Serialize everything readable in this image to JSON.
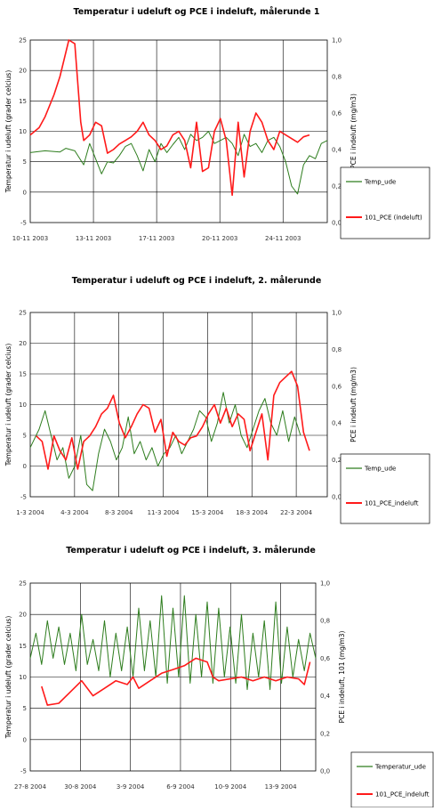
{
  "chart_data": [
    {
      "type": "line",
      "title": "Temperatur i udeluft og PCE i indeluft, målerunde 1",
      "ylabel": "Temperatur i udeluft  (grader celcius)",
      "y2label": "PCE i indeluft (mg/m3)",
      "xlabel": "",
      "x_tick_labels": [
        "10-11 2003",
        "13-11 2003",
        "17-11 2003",
        "20-11 2003",
        "24-11 2003"
      ],
      "y_ticks": [
        "-5",
        "0",
        "5",
        "10",
        "15",
        "20",
        "25"
      ],
      "y2_ticks": [
        "0,0",
        "0,2",
        "0,4",
        "0,6",
        "0,8",
        "1,0"
      ],
      "ylim": [
        -5,
        25
      ],
      "y2lim": [
        0,
        1
      ],
      "grid": true,
      "legend_position": "right",
      "series": [
        {
          "name": "Temp_ude",
          "color": "#2e7d1e",
          "axis": "left",
          "t": [
            0,
            0.05,
            0.1,
            0.12,
            0.15,
            0.18,
            0.2,
            0.22,
            0.24,
            0.26,
            0.28,
            0.3,
            0.32,
            0.34,
            0.36,
            0.38,
            0.4,
            0.42,
            0.44,
            0.46,
            0.48,
            0.5,
            0.52,
            0.54,
            0.56,
            0.58,
            0.6,
            0.62,
            0.64,
            0.66,
            0.68,
            0.7,
            0.72,
            0.74,
            0.76,
            0.78,
            0.8,
            0.82,
            0.84,
            0.86,
            0.88,
            0.9,
            0.92,
            0.94,
            0.96,
            0.98,
            1.0
          ],
          "values": [
            6.5,
            6.8,
            6.6,
            7.2,
            6.8,
            4.5,
            8.0,
            5.5,
            3.0,
            5.0,
            4.8,
            6.0,
            7.5,
            8.0,
            6.0,
            3.5,
            7.0,
            5.0,
            8.0,
            6.5,
            7.8,
            9.0,
            7.0,
            9.5,
            8.5,
            9.0,
            10.0,
            8.0,
            8.5,
            9.0,
            8.0,
            6.0,
            9.5,
            7.5,
            8.0,
            6.5,
            8.5,
            9.0,
            7.5,
            5.0,
            1.0,
            -0.3,
            4.5,
            6.0,
            5.5,
            8.0,
            8.5
          ]
        },
        {
          "name": "101_PCE (indeluft)",
          "color": "#ff1a1a",
          "axis": "right",
          "t": [
            0,
            0.03,
            0.05,
            0.08,
            0.1,
            0.13,
            0.15,
            0.17,
            0.18,
            0.2,
            0.22,
            0.24,
            0.26,
            0.28,
            0.3,
            0.32,
            0.34,
            0.36,
            0.38,
            0.4,
            0.42,
            0.44,
            0.46,
            0.48,
            0.5,
            0.52,
            0.54,
            0.56,
            0.58,
            0.6,
            0.62,
            0.64,
            0.66,
            0.68,
            0.7,
            0.72,
            0.74,
            0.76,
            0.78,
            0.8,
            0.82,
            0.84,
            0.86,
            0.88,
            0.9,
            0.92,
            0.94
          ],
          "values": [
            0.48,
            0.52,
            0.58,
            0.7,
            0.8,
            1.0,
            0.98,
            0.55,
            0.45,
            0.48,
            0.55,
            0.53,
            0.38,
            0.4,
            0.43,
            0.45,
            0.47,
            0.5,
            0.55,
            0.48,
            0.45,
            0.4,
            0.42,
            0.48,
            0.5,
            0.45,
            0.3,
            0.55,
            0.28,
            0.3,
            0.5,
            0.57,
            0.45,
            0.15,
            0.55,
            0.25,
            0.5,
            0.6,
            0.55,
            0.45,
            0.4,
            0.5,
            0.48,
            0.46,
            0.44,
            0.47,
            0.48
          ]
        }
      ]
    },
    {
      "type": "line",
      "title": "Temperatur i udeluft  og PCE i indeluft, 2. målerunde",
      "ylabel": "Temperatur i udeluft (grader celcius)",
      "y2label": "PCE i indeluft  (mg/m3)",
      "xlabel": "",
      "x_tick_labels": [
        "1-3 2004",
        "4-3 2004",
        "8-3 2004",
        "11-3 2004",
        "15-3 2004",
        "18-3 2004",
        "22-3 2004"
      ],
      "y_ticks": [
        "-5",
        "0",
        "5",
        "10",
        "15",
        "20",
        "25"
      ],
      "y2_ticks": [
        "0,0",
        "0,2",
        "0,4",
        "0,6",
        "0,8",
        "1,0"
      ],
      "ylim": [
        -5,
        25
      ],
      "y2lim": [
        0,
        1
      ],
      "grid": true,
      "legend_position": "right",
      "series": [
        {
          "name": "Temp_ude",
          "color": "#2e7d1e",
          "axis": "left",
          "t": [
            0,
            0.03,
            0.05,
            0.07,
            0.09,
            0.11,
            0.13,
            0.15,
            0.17,
            0.19,
            0.21,
            0.23,
            0.25,
            0.27,
            0.29,
            0.31,
            0.33,
            0.35,
            0.37,
            0.39,
            0.41,
            0.43,
            0.45,
            0.47,
            0.49,
            0.51,
            0.53,
            0.55,
            0.57,
            0.59,
            0.61,
            0.63,
            0.65,
            0.67,
            0.69,
            0.71,
            0.73,
            0.75,
            0.77,
            0.79,
            0.81,
            0.83,
            0.85,
            0.87,
            0.89,
            0.91
          ],
          "values": [
            3,
            6,
            9,
            5,
            1,
            3,
            -2,
            0,
            5,
            -3,
            -4,
            2,
            6,
            4,
            1,
            3,
            8,
            2,
            4,
            1,
            3,
            0,
            2,
            3,
            5,
            2,
            4,
            6,
            9,
            8,
            4,
            7,
            12,
            7,
            10,
            5,
            3,
            6,
            9,
            11,
            7,
            5,
            9,
            4,
            8,
            5
          ]
        },
        {
          "name": "101_PCE_indeluft",
          "color": "#ff1a1a",
          "axis": "right",
          "t": [
            0.02,
            0.04,
            0.06,
            0.08,
            0.1,
            0.12,
            0.14,
            0.16,
            0.18,
            0.2,
            0.22,
            0.24,
            0.26,
            0.28,
            0.3,
            0.32,
            0.34,
            0.36,
            0.38,
            0.4,
            0.42,
            0.44,
            0.46,
            0.48,
            0.5,
            0.52,
            0.54,
            0.56,
            0.58,
            0.6,
            0.62,
            0.64,
            0.66,
            0.68,
            0.7,
            0.72,
            0.74,
            0.76,
            0.78,
            0.8,
            0.82,
            0.84,
            0.86,
            0.88,
            0.9,
            0.92,
            0.94
          ],
          "values": [
            0.33,
            0.3,
            0.15,
            0.33,
            0.25,
            0.2,
            0.32,
            0.15,
            0.3,
            0.33,
            0.38,
            0.45,
            0.48,
            0.55,
            0.4,
            0.32,
            0.38,
            0.45,
            0.5,
            0.48,
            0.35,
            0.42,
            0.22,
            0.35,
            0.3,
            0.28,
            0.32,
            0.33,
            0.38,
            0.45,
            0.5,
            0.4,
            0.48,
            0.38,
            0.45,
            0.42,
            0.25,
            0.35,
            0.45,
            0.2,
            0.55,
            0.62,
            0.65,
            0.68,
            0.6,
            0.35,
            0.25
          ]
        }
      ]
    },
    {
      "type": "line",
      "title": "Temperatur i udeluft og PCE i indeluft, 3. målerunde",
      "ylabel": "Temperatur i udeluft (grader celcius)",
      "y2label": "PCE i indeluft, 101 (mg/m3)",
      "xlabel": "",
      "x_tick_labels": [
        "27-8 2004",
        "30-8 2004",
        "3-9 2004",
        "6-9 2004",
        "10-9 2004",
        "13-9 2004"
      ],
      "y_ticks": [
        "-5",
        "0",
        "5",
        "10",
        "15",
        "20",
        "25"
      ],
      "y2_ticks": [
        "0,0",
        "0,2",
        "0,4",
        "0,6",
        "0,8",
        "1,0"
      ],
      "ylim": [
        -5,
        25
      ],
      "y2lim": [
        0,
        1
      ],
      "grid": true,
      "legend_position": "right",
      "series": [
        {
          "name": "Temperatur_ude",
          "color": "#2e7d1e",
          "axis": "left",
          "t": [
            0,
            0.02,
            0.04,
            0.06,
            0.08,
            0.1,
            0.12,
            0.14,
            0.16,
            0.18,
            0.2,
            0.22,
            0.24,
            0.26,
            0.28,
            0.3,
            0.32,
            0.34,
            0.36,
            0.38,
            0.4,
            0.42,
            0.44,
            0.46,
            0.48,
            0.5,
            0.52,
            0.54,
            0.56,
            0.58,
            0.6,
            0.62,
            0.64,
            0.66,
            0.68,
            0.7,
            0.72,
            0.74,
            0.76,
            0.78,
            0.8,
            0.82,
            0.84,
            0.86,
            0.88,
            0.9,
            0.92,
            0.94,
            0.96,
            0.98,
            1.0
          ],
          "values": [
            13,
            17,
            12,
            19,
            13,
            18,
            12,
            17,
            11,
            20,
            12,
            16,
            11,
            19,
            10,
            17,
            11,
            18,
            10,
            21,
            11,
            19,
            10,
            23,
            9,
            21,
            10,
            23,
            9,
            20,
            10,
            22,
            9,
            21,
            10,
            18,
            9,
            20,
            8,
            17,
            10,
            19,
            8,
            22,
            9,
            18,
            10,
            16,
            11,
            17,
            13
          ]
        },
        {
          "name": "101_PCE_indeluft",
          "color": "#ff1a1a",
          "axis": "right",
          "t": [
            0.04,
            0.06,
            0.1,
            0.14,
            0.18,
            0.22,
            0.26,
            0.3,
            0.34,
            0.36,
            0.38,
            0.42,
            0.46,
            0.5,
            0.54,
            0.58,
            0.62,
            0.64,
            0.66,
            0.7,
            0.74,
            0.78,
            0.82,
            0.86,
            0.9,
            0.94,
            0.96,
            0.98
          ],
          "values": [
            0.45,
            0.35,
            0.36,
            0.42,
            0.48,
            0.4,
            0.44,
            0.48,
            0.46,
            0.5,
            0.44,
            0.48,
            0.52,
            0.54,
            0.56,
            0.6,
            0.58,
            0.5,
            0.48,
            0.49,
            0.5,
            0.48,
            0.5,
            0.48,
            0.5,
            0.49,
            0.46,
            0.58
          ]
        }
      ]
    }
  ]
}
